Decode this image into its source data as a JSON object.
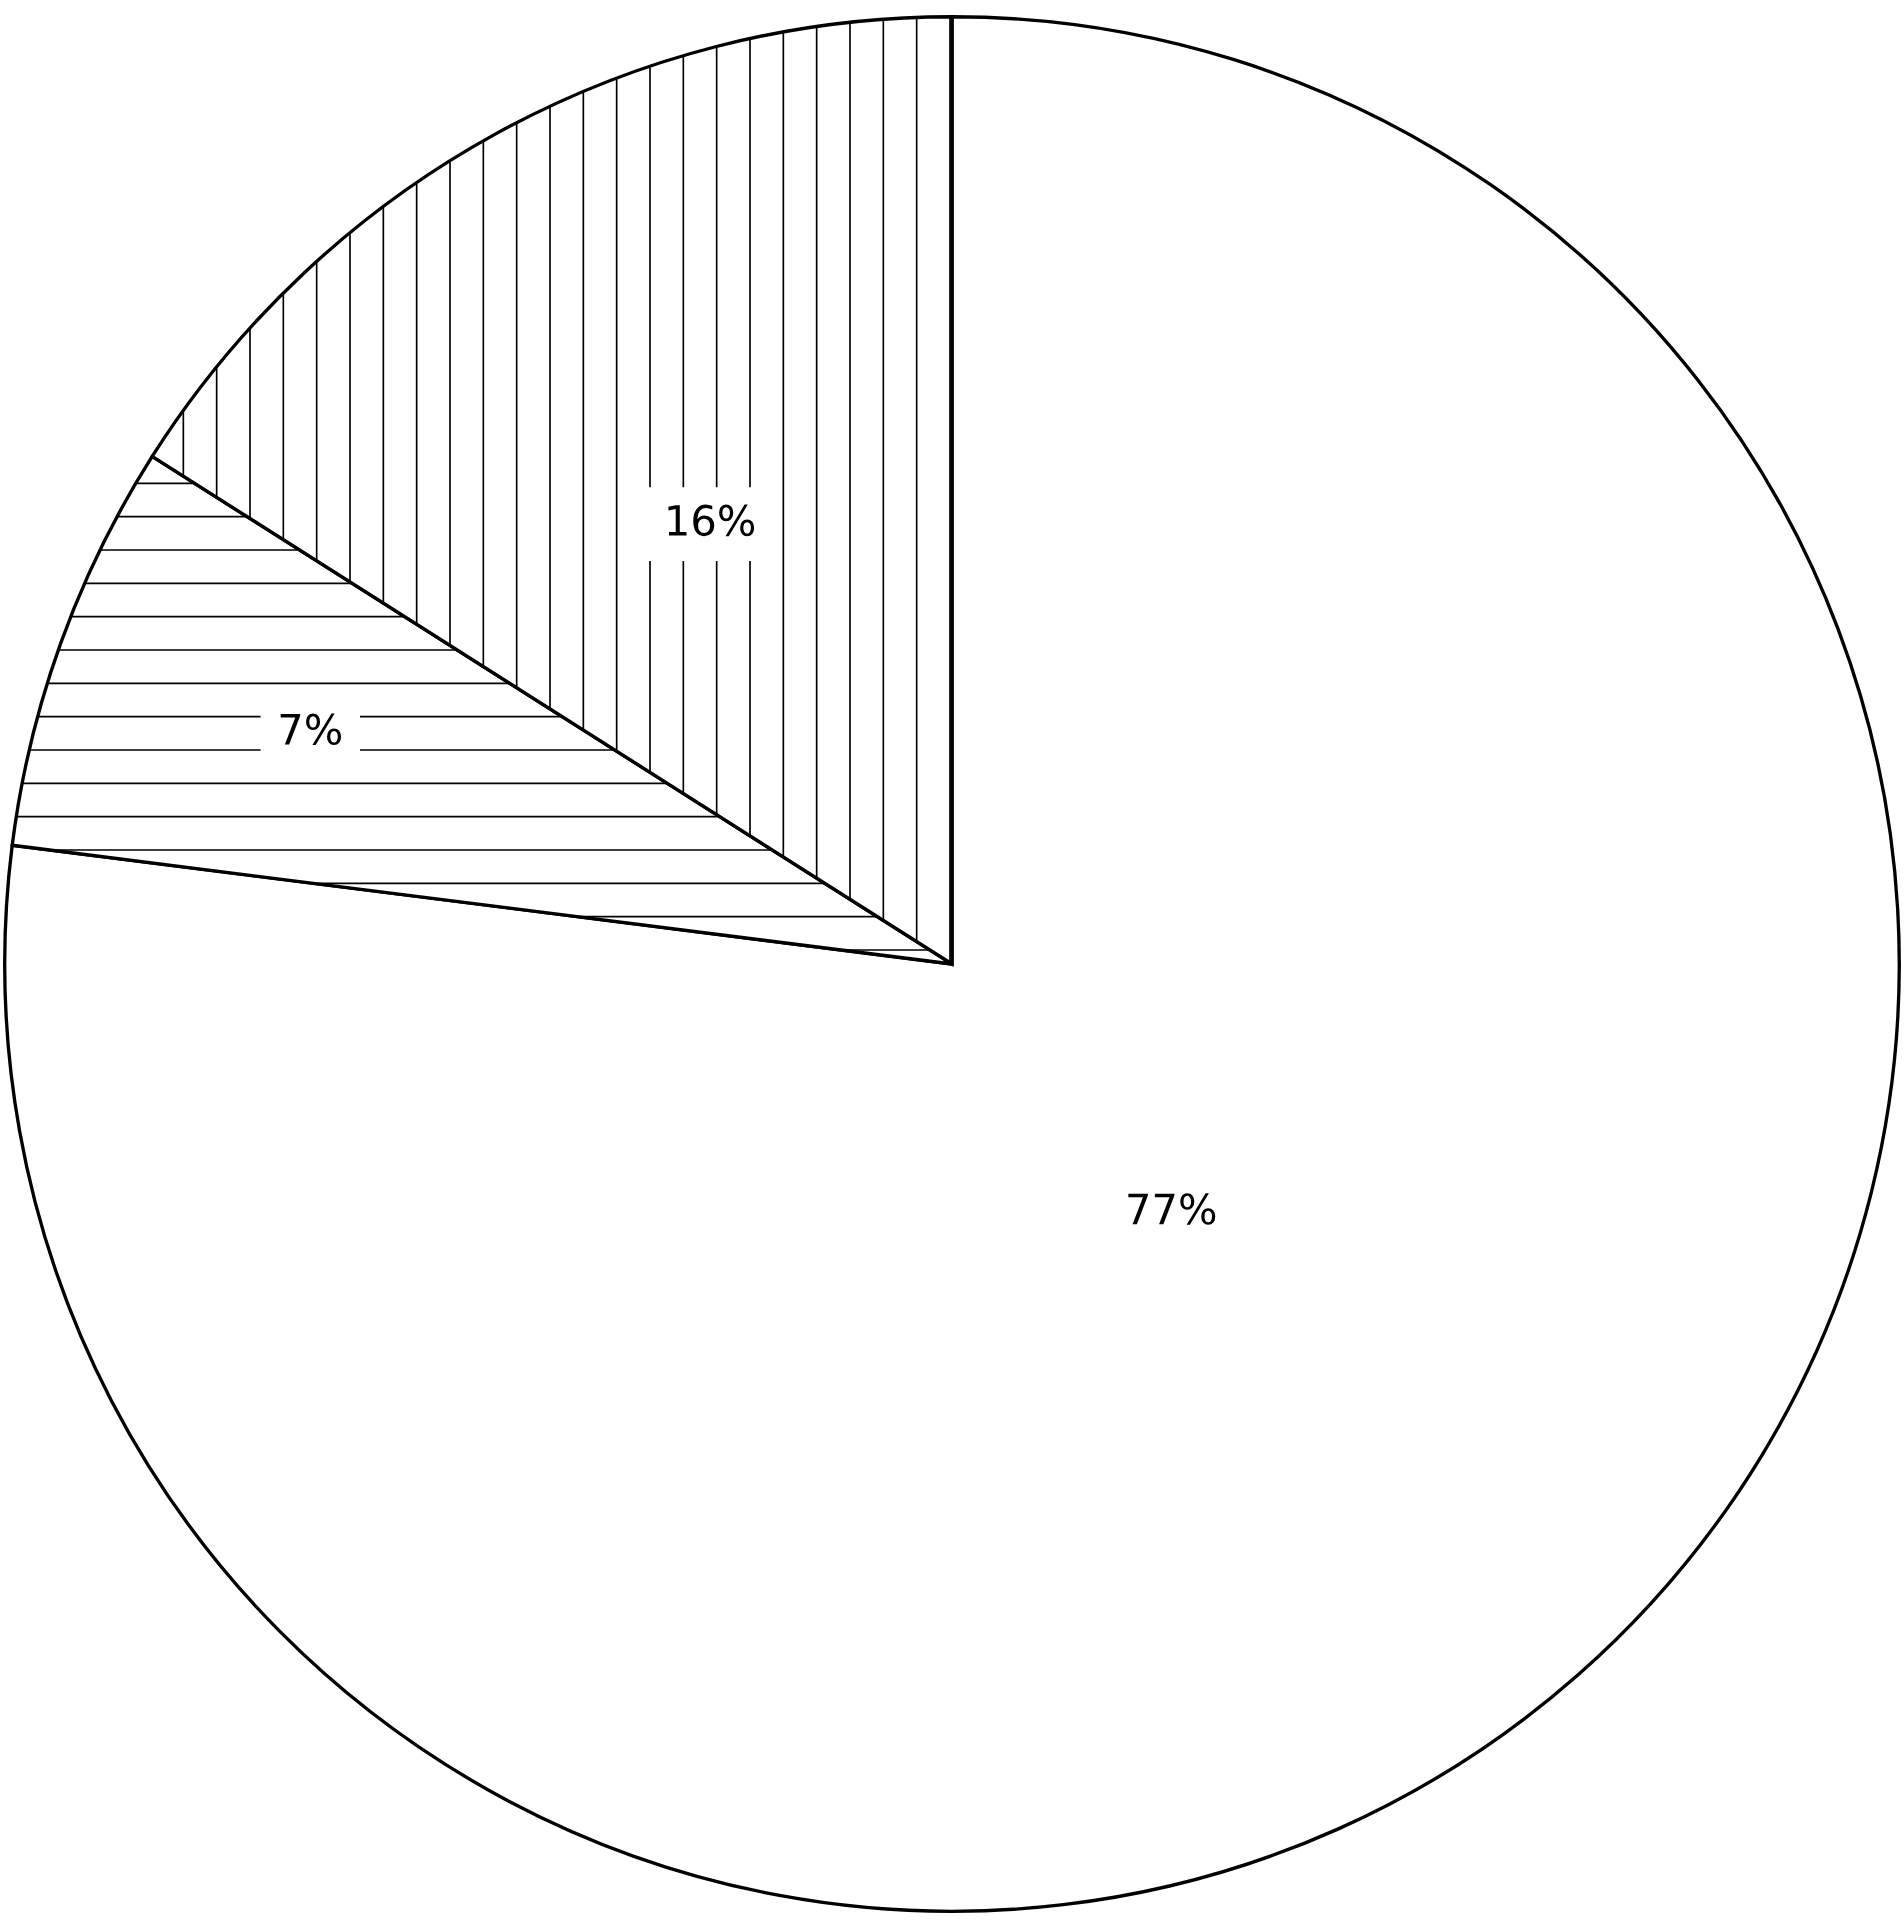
{
  "chart_data": {
    "type": "pie",
    "categories": [
      null,
      null,
      null
    ],
    "values": [
      77,
      7,
      16
    ],
    "colors": [
      "#ffffff",
      "#ffffff",
      "#ffffff"
    ],
    "value_labels": [
      "77%",
      "7%",
      "16%"
    ]
  }
}
